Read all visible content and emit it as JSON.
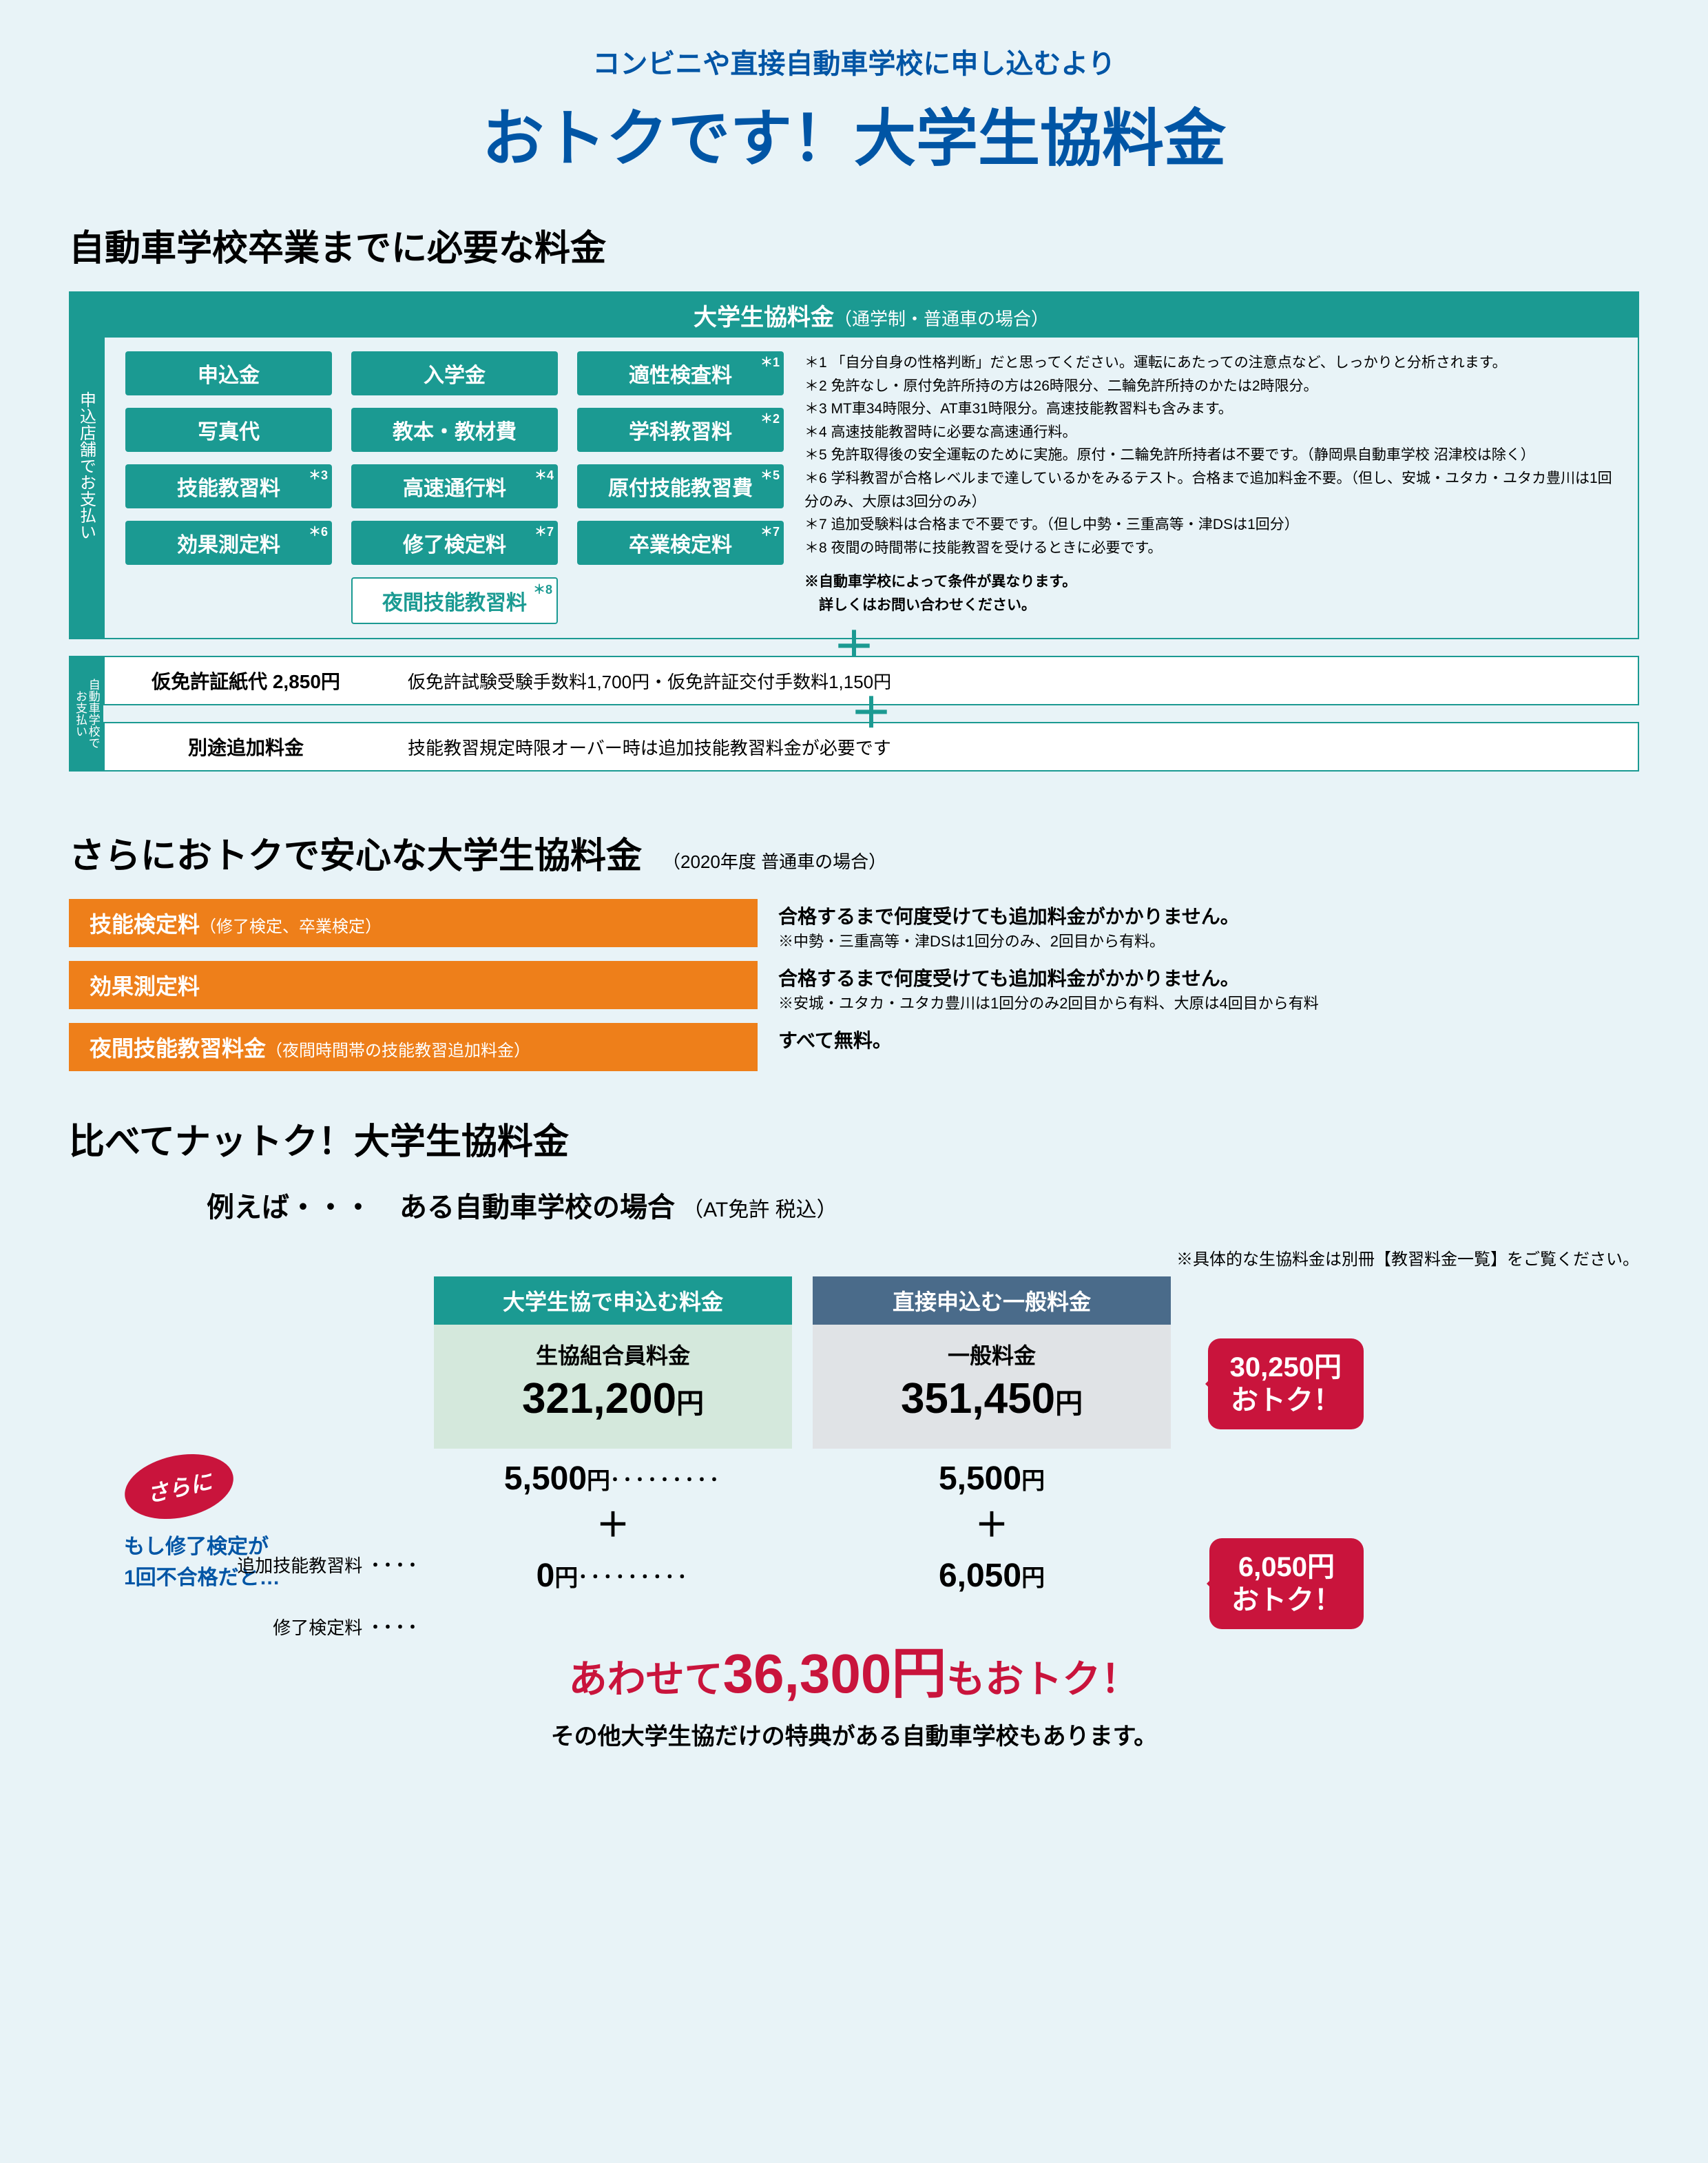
{
  "header": {
    "sub": "コンビニや直接自動車学校に申し込むより",
    "main": "おトクです！大学生協料金"
  },
  "sec1": {
    "title": "自動車学校卒業までに必要な料金",
    "vtab_store": "申込店舗でお支払い",
    "box_title": "大学生協料金",
    "box_title_paren": "（通学制・普通車の場合）",
    "fees": [
      {
        "label": "申込金",
        "ast": ""
      },
      {
        "label": "入学金",
        "ast": ""
      },
      {
        "label": "適性検査料",
        "ast": "＊1"
      },
      {
        "label": "写真代",
        "ast": ""
      },
      {
        "label": "教本・教材費",
        "ast": ""
      },
      {
        "label": "学科教習料",
        "ast": "＊2"
      },
      {
        "label": "技能教習料",
        "ast": "＊3"
      },
      {
        "label": "高速通行料",
        "ast": "＊4"
      },
      {
        "label": "原付技能教習費",
        "ast": "＊5"
      },
      {
        "label": "効果測定料",
        "ast": "＊6"
      },
      {
        "label": "修了検定料",
        "ast": "＊7"
      },
      {
        "label": "卒業検定料",
        "ast": "＊7"
      }
    ],
    "night_fee": {
      "label": "夜間技能教習料",
      "ast": "＊8"
    },
    "notes": [
      "＊1 「自分自身の性格判断」だと思ってください。運転にあたっての注意点など、しっかりと分析されます。",
      "＊2 免許なし・原付免許所持の方は26時限分、二輪免許所持のかたは2時限分。",
      "＊3 MT車34時限分、AT車31時限分。高速技能教習料も含みます。",
      "＊4 高速技能教習時に必要な高速通行料。",
      "＊5 免許取得後の安全運転のために実施。原付・二輪免許所持者は不要です。（静岡県自動車学校 沼津校は除く）",
      "＊6 学科教習が合格レベルまで達しているかをみるテスト。合格まで追加料金不要。（但し、安城・ユタカ・ユタカ豊川は1回分のみ、大原は3回分のみ）",
      "＊7 追加受験料は合格まで不要です。（但し中勢・三重高等・津DSは1回分）",
      "＊8 夜間の時間帯に技能教習を受けるときに必要です。"
    ],
    "notes_bold": "※自動車学校によって条件が異なります。\n　詳しくはお問い合わせください。",
    "vtab_school": "自動車学校で\nお支払い",
    "sub1_label": "仮免許証紙代 2,850円",
    "sub1_text": "仮免許試験受験手数料1,700円・仮免許証交付手数料1,150円",
    "sub2_label": "別途追加料金",
    "sub2_text": "技能教習規定時限オーバー時は追加技能教習料金が必要です"
  },
  "sec2": {
    "title": "さらにおトクで安心な大学生協料金",
    "paren": "（2020年度 普通車の場合）",
    "rows": [
      {
        "bar": "技能検定料",
        "bar_paren": "（修了検定、卒業検定）",
        "text_bold": "合格するまで何度受けても追加料金がかかりません。",
        "text_sm": "※中勢・三重高等・津DSは1回分のみ、2回目から有料。"
      },
      {
        "bar": "効果測定料",
        "bar_paren": "",
        "text_bold": "合格するまで何度受けても追加料金がかかりません。",
        "text_sm": "※安城・ユタカ・ユタカ豊川は1回分のみ2回目から有料、大原は4回目から有料"
      },
      {
        "bar": "夜間技能教習料金",
        "bar_paren": "（夜間時間帯の技能教習追加料金）",
        "text_bold": "すべて無料。",
        "text_sm": ""
      }
    ]
  },
  "sec3": {
    "title": "比べてナットク！大学生協料金",
    "sub": "例えば・・・　ある自動車学校の場合",
    "sub_paren": "（AT免許 税込）",
    "note": "※具体的な生協料金は別冊【教習料金一覧】をご覧ください。",
    "sara": "さらに",
    "if_text": "もし修了検定が\n1回不合格だと…",
    "row_label1": "追加技能教習料",
    "row_label2": "修了検定料",
    "col1_head": "大学生協で申込む料金",
    "col1_label": "生協組合員料金",
    "col1_price": "321,200",
    "col2_head": "直接申込む一般料金",
    "col2_label": "一般料金",
    "col2_price": "351,450",
    "add1_c1": "5,500",
    "add1_c2": "5,500",
    "add2_c1": "0",
    "add2_c2": "6,050",
    "yen": "円",
    "save1": "30,250円\nおトク！",
    "save2": "6,050円\nおトク！",
    "final_red_pre": "あわせて",
    "final_red_big": "36,300円",
    "final_red_post": "もおトク！",
    "final_sub": "その他大学生協だけの特典がある自動車学校もあります。"
  }
}
